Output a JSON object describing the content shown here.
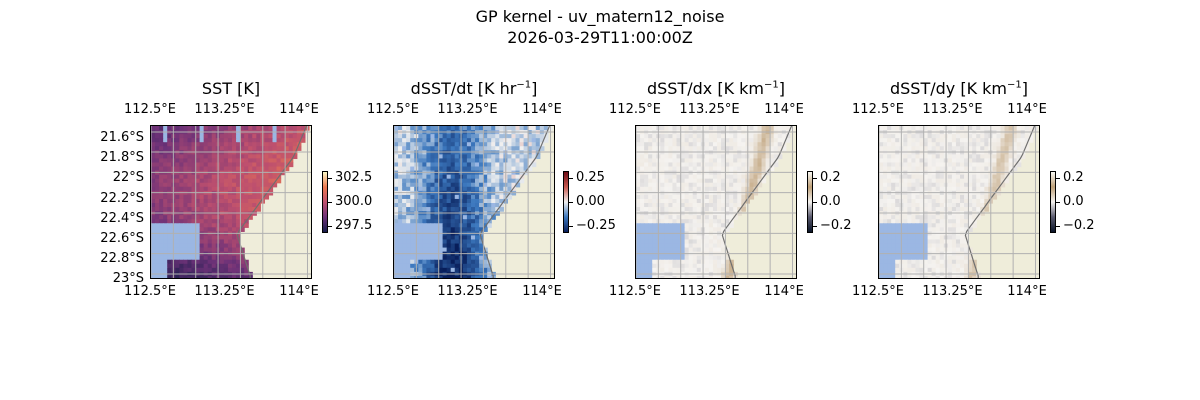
{
  "figure": {
    "title_line1": "GP kernel - uv_matern12_noise",
    "title_line2": "2026-03-29T11:00:00Z"
  },
  "colors": {
    "land": "#efedda",
    "nodata": "#9bb7e3",
    "coast": "#6f6f6f",
    "grid": "#b0b0b0"
  },
  "chart_data": [
    {
      "type": "heatmap",
      "title": "SST [K]",
      "colormap": "plasma-like",
      "colorbar": {
        "ticks": [
          "302.5",
          "300.0",
          "297.5"
        ],
        "range": [
          297,
          303.5
        ]
      },
      "xlabel": "",
      "ylabel": "",
      "x_ticks_top": [
        "112.5°E",
        "113.25°E",
        "114°E"
      ],
      "x_ticks_bottom": [
        "112.5°E",
        "113.25°E",
        "114°E"
      ],
      "y_ticks": [
        "21.6°S",
        "21.8°S",
        "22°S",
        "22.2°S",
        "22.4°S",
        "22.6°S",
        "22.8°S",
        "23°S"
      ],
      "xlim": [
        112.5,
        114.2
      ],
      "ylim": [
        -23.0,
        -21.5
      ],
      "grid": true
    },
    {
      "type": "heatmap",
      "title": "dSST/dt [K hr",
      "title_sup": "−1",
      "title_end": "]",
      "colormap": "blue-white-red",
      "colorbar": {
        "ticks": [
          "0.25",
          "0.00",
          "−0.25"
        ],
        "range": [
          -0.35,
          0.35
        ]
      },
      "x_ticks_top": [
        "112.5°E",
        "113.25°E",
        "114°E"
      ],
      "x_ticks_bottom": [
        "112.5°E",
        "113.25°E",
        "114°E"
      ],
      "grid": true
    },
    {
      "type": "heatmap",
      "title": "dSST/dx [K km",
      "title_sup": "−1",
      "title_end": "]",
      "colormap": "brown-white",
      "colorbar": {
        "ticks": [
          "0.2",
          "0.0",
          "−0.2"
        ],
        "range": [
          -0.2,
          0.2
        ]
      },
      "x_ticks_top": [
        "112.5°E",
        "113.25°E",
        "114°E"
      ],
      "x_ticks_bottom": [
        "112.5°E",
        "113.25°E",
        "114°E"
      ],
      "grid": true
    },
    {
      "type": "heatmap",
      "title": "dSST/dy [K km",
      "title_sup": "−1",
      "title_end": "]",
      "colormap": "brown-white",
      "colorbar": {
        "ticks": [
          "0.2",
          "0.0",
          "−0.2"
        ],
        "range": [
          -0.2,
          0.2
        ]
      },
      "x_ticks_top": [
        "112.5°E",
        "113.25°E",
        "114°E"
      ],
      "x_ticks_bottom": [
        "112.5°E",
        "113.25°E",
        "114°E"
      ],
      "grid": true
    }
  ]
}
